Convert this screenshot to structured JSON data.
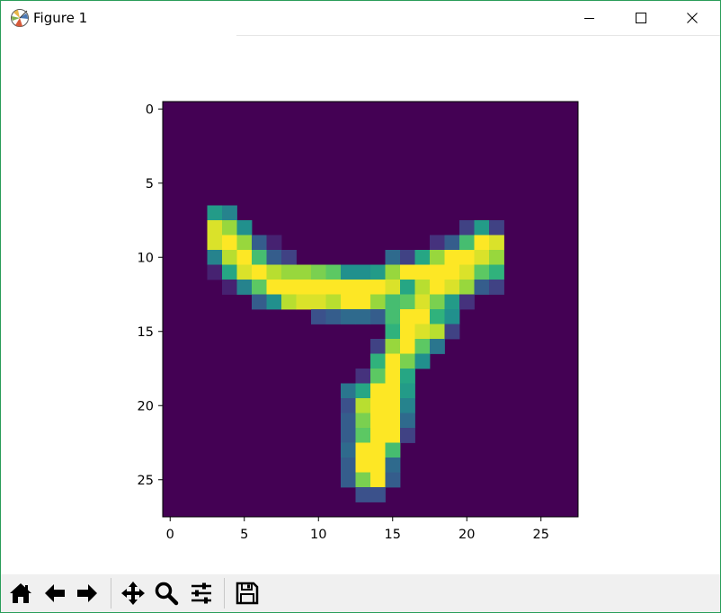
{
  "window": {
    "title": "Figure 1",
    "controls": [
      "minimize",
      "maximize",
      "close"
    ]
  },
  "chart_data": {
    "type": "heatmap",
    "title": "",
    "xlabel": "",
    "ylabel": "",
    "x_ticks": [
      "0",
      "5",
      "10",
      "15",
      "20",
      "25"
    ],
    "y_ticks": [
      "0",
      "5",
      "10",
      "15",
      "20",
      "25"
    ],
    "x_range": [
      -0.5,
      27.5
    ],
    "y_range": [
      27.5,
      -0.5
    ],
    "colormap": "viridis",
    "value_range": [
      0,
      1
    ],
    "grid": false,
    "rows": 28,
    "cols": 28,
    "cells": [
      [
        7,
        3,
        0.55
      ],
      [
        7,
        4,
        0.45
      ],
      [
        8,
        3,
        0.95
      ],
      [
        8,
        4,
        0.85
      ],
      [
        8,
        5,
        0.5
      ],
      [
        8,
        20,
        0.2
      ],
      [
        8,
        21,
        0.55
      ],
      [
        8,
        22,
        0.2
      ],
      [
        9,
        3,
        0.95
      ],
      [
        9,
        4,
        1
      ],
      [
        9,
        5,
        0.85
      ],
      [
        9,
        6,
        0.3
      ],
      [
        9,
        7,
        0.1
      ],
      [
        9,
        18,
        0.15
      ],
      [
        9,
        19,
        0.3
      ],
      [
        9,
        20,
        0.7
      ],
      [
        9,
        21,
        1
      ],
      [
        9,
        22,
        0.95
      ],
      [
        10,
        3,
        0.45
      ],
      [
        10,
        4,
        0.9
      ],
      [
        10,
        5,
        1
      ],
      [
        10,
        6,
        0.7
      ],
      [
        10,
        7,
        0.3
      ],
      [
        10,
        8,
        0.2
      ],
      [
        10,
        15,
        0.35
      ],
      [
        10,
        16,
        0.2
      ],
      [
        10,
        17,
        0.6
      ],
      [
        10,
        18,
        0.85
      ],
      [
        10,
        19,
        1
      ],
      [
        10,
        20,
        1
      ],
      [
        10,
        21,
        0.95
      ],
      [
        10,
        22,
        0.85
      ],
      [
        11,
        3,
        0.1
      ],
      [
        11,
        4,
        0.6
      ],
      [
        11,
        5,
        0.95
      ],
      [
        11,
        6,
        1
      ],
      [
        11,
        7,
        0.9
      ],
      [
        11,
        8,
        0.85
      ],
      [
        11,
        9,
        0.85
      ],
      [
        11,
        10,
        0.8
      ],
      [
        11,
        11,
        0.75
      ],
      [
        11,
        12,
        0.5
      ],
      [
        11,
        13,
        0.5
      ],
      [
        11,
        14,
        0.55
      ],
      [
        11,
        15,
        0.85
      ],
      [
        11,
        16,
        1
      ],
      [
        11,
        17,
        1
      ],
      [
        11,
        18,
        1
      ],
      [
        11,
        19,
        1
      ],
      [
        11,
        20,
        0.95
      ],
      [
        11,
        21,
        0.75
      ],
      [
        11,
        22,
        0.65
      ],
      [
        12,
        4,
        0.1
      ],
      [
        12,
        5,
        0.45
      ],
      [
        12,
        6,
        0.75
      ],
      [
        12,
        7,
        1
      ],
      [
        12,
        8,
        1
      ],
      [
        12,
        9,
        1
      ],
      [
        12,
        10,
        1
      ],
      [
        12,
        11,
        1
      ],
      [
        12,
        12,
        1
      ],
      [
        12,
        13,
        1
      ],
      [
        12,
        14,
        1
      ],
      [
        12,
        15,
        0.95
      ],
      [
        12,
        16,
        0.6
      ],
      [
        12,
        17,
        0.9
      ],
      [
        12,
        18,
        1
      ],
      [
        12,
        19,
        0.95
      ],
      [
        12,
        20,
        0.85
      ],
      [
        12,
        21,
        0.3
      ],
      [
        12,
        22,
        0.2
      ],
      [
        13,
        6,
        0.3
      ],
      [
        13,
        7,
        0.5
      ],
      [
        13,
        8,
        0.9
      ],
      [
        13,
        9,
        0.95
      ],
      [
        13,
        10,
        0.95
      ],
      [
        13,
        11,
        0.9
      ],
      [
        13,
        12,
        1
      ],
      [
        13,
        13,
        1
      ],
      [
        13,
        14,
        0.85
      ],
      [
        13,
        15,
        0.7
      ],
      [
        13,
        16,
        0.75
      ],
      [
        13,
        17,
        0.95
      ],
      [
        13,
        18,
        0.8
      ],
      [
        13,
        19,
        0.55
      ],
      [
        13,
        20,
        0.15
      ],
      [
        14,
        10,
        0.25
      ],
      [
        14,
        11,
        0.3
      ],
      [
        14,
        12,
        0.35
      ],
      [
        14,
        13,
        0.35
      ],
      [
        14,
        14,
        0.3
      ],
      [
        14,
        15,
        0.7
      ],
      [
        14,
        16,
        1
      ],
      [
        14,
        17,
        1
      ],
      [
        14,
        18,
        0.65
      ],
      [
        14,
        19,
        0.5
      ],
      [
        15,
        15,
        0.65
      ],
      [
        15,
        16,
        1
      ],
      [
        15,
        17,
        0.95
      ],
      [
        15,
        18,
        0.9
      ],
      [
        15,
        19,
        0.2
      ],
      [
        16,
        14,
        0.2
      ],
      [
        16,
        15,
        0.85
      ],
      [
        16,
        16,
        1
      ],
      [
        16,
        17,
        0.75
      ],
      [
        16,
        18,
        0.4
      ],
      [
        17,
        14,
        0.65
      ],
      [
        17,
        15,
        1
      ],
      [
        17,
        16,
        0.8
      ],
      [
        17,
        17,
        0.5
      ],
      [
        18,
        13,
        0.15
      ],
      [
        18,
        14,
        0.75
      ],
      [
        18,
        15,
        1
      ],
      [
        18,
        16,
        0.6
      ],
      [
        19,
        12,
        0.4
      ],
      [
        19,
        13,
        0.6
      ],
      [
        19,
        14,
        1
      ],
      [
        19,
        15,
        1
      ],
      [
        19,
        16,
        0.55
      ],
      [
        20,
        12,
        0.25
      ],
      [
        20,
        13,
        0.9
      ],
      [
        20,
        14,
        1
      ],
      [
        20,
        15,
        1
      ],
      [
        20,
        16,
        0.45
      ],
      [
        21,
        12,
        0.3
      ],
      [
        21,
        13,
        0.8
      ],
      [
        21,
        14,
        1
      ],
      [
        21,
        15,
        1
      ],
      [
        21,
        16,
        0.35
      ],
      [
        22,
        12,
        0.3
      ],
      [
        22,
        13,
        0.75
      ],
      [
        22,
        14,
        1
      ],
      [
        22,
        15,
        1
      ],
      [
        22,
        16,
        0.2
      ],
      [
        23,
        12,
        0.35
      ],
      [
        23,
        13,
        1
      ],
      [
        23,
        14,
        1
      ],
      [
        23,
        15,
        0.7
      ],
      [
        24,
        12,
        0.3
      ],
      [
        24,
        13,
        1
      ],
      [
        24,
        14,
        1
      ],
      [
        24,
        15,
        0.35
      ],
      [
        25,
        12,
        0.3
      ],
      [
        25,
        13,
        0.8
      ],
      [
        25,
        14,
        1
      ],
      [
        25,
        15,
        0.3
      ],
      [
        26,
        13,
        0.25
      ],
      [
        26,
        14,
        0.25
      ]
    ]
  },
  "toolbar": {
    "buttons": [
      {
        "icon": "home-icon"
      },
      {
        "icon": "back-arrow-icon"
      },
      {
        "icon": "forward-arrow-icon"
      },
      {
        "icon": "pan-icon"
      },
      {
        "icon": "zoom-icon"
      },
      {
        "icon": "subplots-icon"
      },
      {
        "icon": "save-icon"
      }
    ]
  }
}
